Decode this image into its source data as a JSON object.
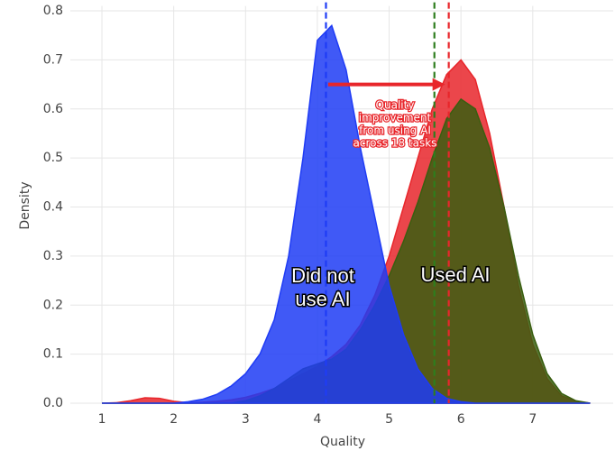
{
  "chart_data": {
    "type": "density",
    "x_label": "Quality",
    "y_label": "Density",
    "xlim": [
      0.56,
      8.12
    ],
    "ylim": [
      0,
      0.81
    ],
    "xticks": [
      1,
      2,
      3,
      4,
      5,
      6,
      7
    ],
    "yticks": [
      {
        "value": 0,
        "label": "0.0"
      },
      0.1,
      0.2,
      0.3,
      0.4,
      0.5,
      0.6,
      0.7,
      0.8
    ],
    "grid": true,
    "x": [
      1.0,
      1.2,
      1.4,
      1.6,
      1.8,
      2.0,
      2.2,
      2.4,
      2.6,
      2.8,
      3.0,
      3.2,
      3.4,
      3.6,
      3.8,
      4.0,
      4.2,
      4.4,
      4.6,
      4.8,
      5.0,
      5.2,
      5.4,
      5.6,
      5.8,
      6.0,
      6.2,
      6.4,
      6.6,
      6.8,
      7.0,
      7.2,
      7.4,
      7.6,
      7.8
    ],
    "series": [
      {
        "color": "#e8262b",
        "values": [
          0,
          0.001,
          0.005,
          0.011,
          0.01,
          0.004,
          0.001,
          0.002,
          0.004,
          0.007,
          0.012,
          0.02,
          0.03,
          0.045,
          0.06,
          0.075,
          0.095,
          0.12,
          0.16,
          0.22,
          0.3,
          0.4,
          0.5,
          0.6,
          0.67,
          0.7,
          0.66,
          0.55,
          0.4,
          0.24,
          0.12,
          0.05,
          0.015,
          0.004,
          0
        ]
      },
      {
        "color": "#3a5e10",
        "values": [
          0,
          0,
          0,
          0,
          0,
          0,
          0,
          0,
          0,
          0,
          0.005,
          0.015,
          0.03,
          0.05,
          0.07,
          0.08,
          0.09,
          0.11,
          0.15,
          0.2,
          0.26,
          0.33,
          0.41,
          0.5,
          0.58,
          0.62,
          0.6,
          0.52,
          0.4,
          0.26,
          0.14,
          0.06,
          0.02,
          0.005,
          0
        ]
      },
      {
        "color": "#1f3cf5",
        "values": [
          0,
          0,
          0,
          0,
          0,
          0,
          0.003,
          0.008,
          0.018,
          0.035,
          0.06,
          0.1,
          0.17,
          0.3,
          0.5,
          0.74,
          0.77,
          0.68,
          0.52,
          0.38,
          0.24,
          0.14,
          0.07,
          0.03,
          0.01,
          0.003,
          0,
          0,
          0,
          0,
          0,
          0,
          0,
          0,
          0
        ]
      }
    ],
    "vlines": [
      {
        "value": 4.12,
        "color": "#1f3cf5"
      },
      {
        "value": 5.63,
        "color": "#2e7d1e"
      },
      {
        "value": 5.83,
        "color": "#e8262b"
      }
    ],
    "arrow": {
      "x": [
        4.15,
        5.78
      ],
      "y": 0.65,
      "color": "#e8262b"
    },
    "annotations": [
      {
        "lines": [
          "Did not",
          "use AI"
        ]
      },
      {
        "lines": [
          "Used AI"
        ]
      },
      {
        "lines": [
          "Quality",
          "improvement",
          "from using AI",
          "across 18 tasks"
        ]
      }
    ]
  }
}
